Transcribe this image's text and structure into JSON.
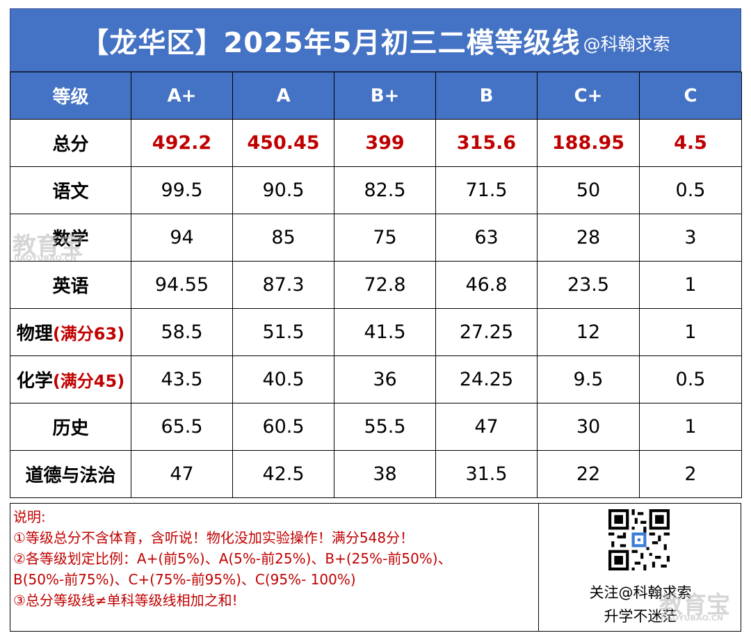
{
  "title": {
    "main": "【龙华区】2025年5月初三二模等级线",
    "credit": "@科翰求索"
  },
  "header": {
    "corner": "等级",
    "grades": [
      "A+",
      "A",
      "B+",
      "B",
      "C+",
      "C"
    ]
  },
  "rows": [
    {
      "label": "总分",
      "note": "",
      "values": [
        "492.2",
        "450.45",
        "399",
        "315.6",
        "188.95",
        "4.5"
      ],
      "highlight": true
    },
    {
      "label": "语文",
      "note": "",
      "values": [
        "99.5",
        "90.5",
        "82.5",
        "71.5",
        "50",
        "0.5"
      ]
    },
    {
      "label": "数学",
      "note": "",
      "values": [
        "94",
        "85",
        "75",
        "63",
        "28",
        "3"
      ]
    },
    {
      "label": "英语",
      "note": "",
      "values": [
        "94.55",
        "87.3",
        "72.8",
        "46.8",
        "23.5",
        "1"
      ]
    },
    {
      "label": "物理",
      "note": "(满分63)",
      "values": [
        "58.5",
        "51.5",
        "41.5",
        "27.25",
        "12",
        "1"
      ]
    },
    {
      "label": "化学",
      "note": "(满分45)",
      "values": [
        "43.5",
        "40.5",
        "36",
        "24.25",
        "9.5",
        "0.5"
      ]
    },
    {
      "label": "历史",
      "note": "",
      "values": [
        "65.5",
        "60.5",
        "55.5",
        "47",
        "30",
        "1"
      ]
    },
    {
      "label": "道德与法治",
      "note": "",
      "values": [
        "47",
        "42.5",
        "38",
        "31.5",
        "22",
        "2"
      ]
    }
  ],
  "notes": [
    "说明:",
    "①等级总分不含体育，含听说！物化没加实验操作！满分548分！",
    "②各等级划定比例：A+(前5%)、A(5%-前25%)、B+(25%-前50%)、",
    "B(50%-前75%)、C+(75%-前95%)、C(95%- 100%)",
    "③总分等级线≠单科等级线相加之和!"
  ],
  "qr": {
    "line1": "关注@科翰求索",
    "line2": "升学不迷茫"
  },
  "watermarks": {
    "left_cn": "教育宝",
    "left_en": "JIAOYUBAO.CN",
    "right_cn": "教育宝",
    "right_en": "JIAOYUBAO.CN"
  },
  "colors": {
    "header_blue": "#4472c4",
    "accent_red": "#c00000"
  }
}
